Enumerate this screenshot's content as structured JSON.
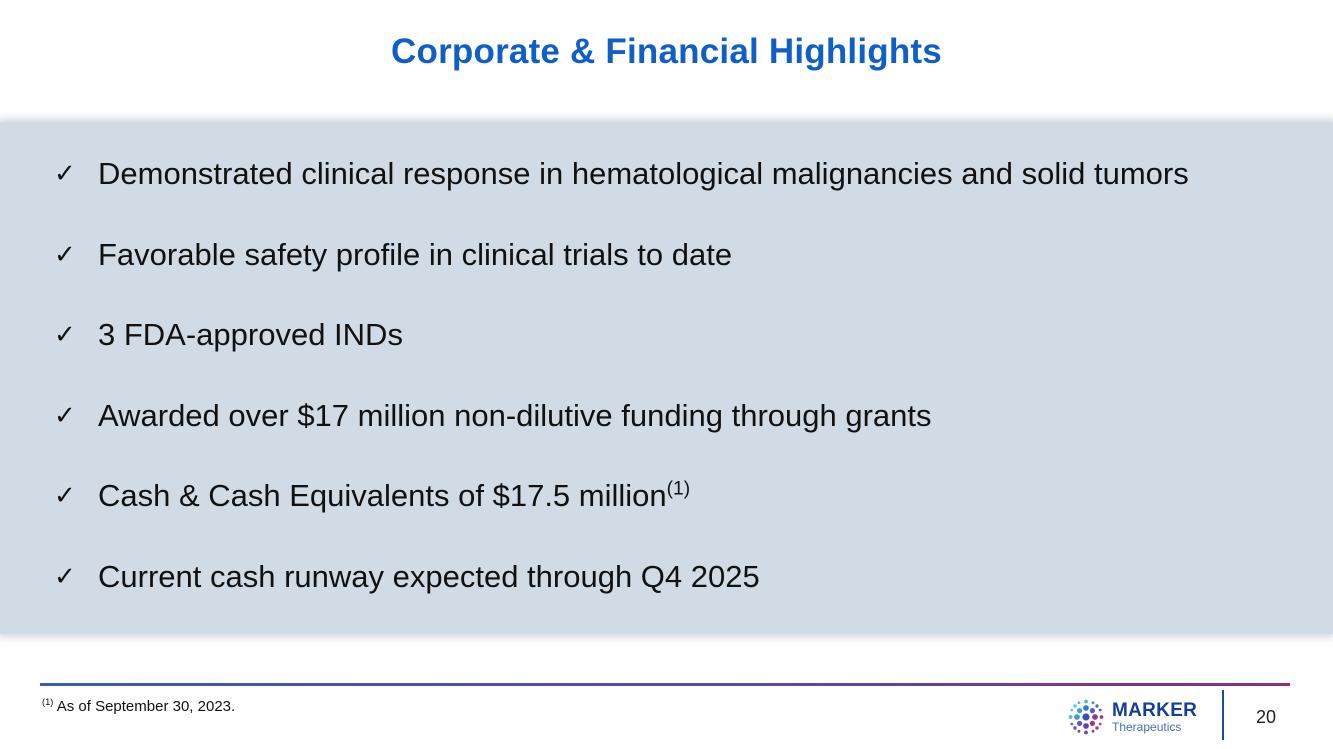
{
  "slide": {
    "title": "Corporate & Financial Highlights",
    "bullets": [
      {
        "text": "Demonstrated clinical response in hematological malignancies and solid tumors",
        "sup": ""
      },
      {
        "text": "Favorable safety profile in clinical trials to date",
        "sup": ""
      },
      {
        "text": "3 FDA-approved INDs",
        "sup": ""
      },
      {
        "text": "Awarded over $17 million non-dilutive funding through grants",
        "sup": ""
      },
      {
        "text": "Cash & Cash Equivalents of $17.5 million",
        "sup": "(1)"
      },
      {
        "text": "Current cash runway expected through Q4 2025",
        "sup": ""
      }
    ],
    "check_glyph": "✓",
    "check_icon": "checkmark-icon"
  },
  "footer": {
    "footnote_marker": "(1)",
    "footnote_text": "As of September 30, 2023.",
    "logo": {
      "name": "MARKER",
      "subtitle": "Therapeutics",
      "icon": "marker-dot-cluster-logo"
    },
    "page_number": "20"
  },
  "colors": {
    "title": "#0f5fc6",
    "panel": "#d0dbe6",
    "rule_start": "#3b5bb0",
    "rule_end": "#8a2f7d",
    "logo_name": "#123f9a"
  }
}
